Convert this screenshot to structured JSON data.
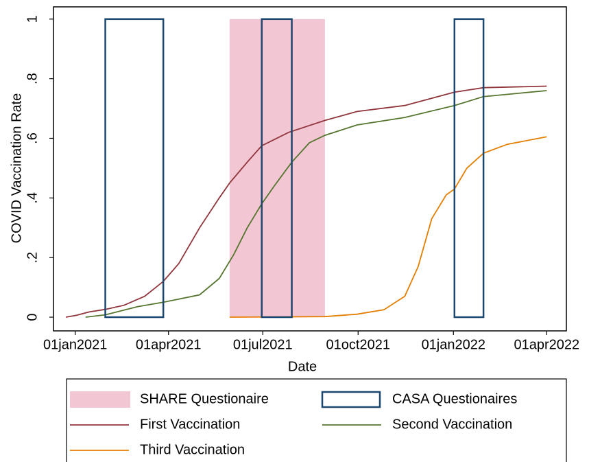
{
  "chart_data": {
    "type": "line",
    "xlabel": "Date",
    "ylabel": "COVID Vaccination Rate",
    "xlim": [
      "2020-12-11",
      "2022-04-20"
    ],
    "xticks": [
      {
        "value": "2021-01-01",
        "label": "01jan2021"
      },
      {
        "value": "2021-04-01",
        "label": "01apr2021"
      },
      {
        "value": "2021-07-01",
        "label": "01jul2021"
      },
      {
        "value": "2021-10-01",
        "label": "01oct2021"
      },
      {
        "value": "2022-01-01",
        "label": "01jan2022"
      },
      {
        "value": "2022-04-01",
        "label": "01apr2022"
      }
    ],
    "ylim": [
      -0.046,
      1.041
    ],
    "yticks": [
      0,
      {
        "value": 0.2,
        "label": ".2"
      },
      {
        "value": 0.4,
        "label": ".4"
      },
      {
        "value": 0.6,
        "label": ".6"
      },
      {
        "value": 0.8,
        "label": ".8"
      },
      1
    ],
    "bands": [
      {
        "name": "SHARE Questionaire",
        "style": "fill",
        "color": "#f2c6d2",
        "range": [
          0,
          1
        ],
        "spans": [
          [
            "2021-05-30",
            "2021-08-30"
          ]
        ]
      },
      {
        "name": "CASA Questionaires",
        "style": "outline",
        "color": "#1a476f",
        "range": [
          0,
          1
        ],
        "spans": [
          [
            "2021-01-30",
            "2021-03-27"
          ],
          [
            "2021-06-30",
            "2021-07-29"
          ],
          [
            "2022-01-02",
            "2022-01-30"
          ]
        ]
      }
    ],
    "series": [
      {
        "name": "First Vaccination",
        "color": "#90353b",
        "x": [
          "2020-12-23",
          "2021-01-02",
          "2021-01-15",
          "2021-01-30",
          "2021-02-17",
          "2021-03-09",
          "2021-03-27",
          "2021-04-11",
          "2021-05-01",
          "2021-05-20",
          "2021-05-30",
          "2021-06-16",
          "2021-06-30",
          "2021-07-26",
          "2021-08-30",
          "2021-09-30",
          "2021-11-15",
          "2022-01-02",
          "2022-01-30",
          "2022-04-01"
        ],
        "values": [
          0,
          0.006,
          0.018,
          0.026,
          0.04,
          0.07,
          0.12,
          0.18,
          0.3,
          0.4,
          0.45,
          0.52,
          0.575,
          0.62,
          0.66,
          0.69,
          0.71,
          0.755,
          0.77,
          0.775
        ]
      },
      {
        "name": "Second Vaccination",
        "color": "#55752f",
        "x": [
          "2021-01-11",
          "2021-01-30",
          "2021-03-02",
          "2021-03-27",
          "2021-05-01",
          "2021-05-20",
          "2021-06-03",
          "2021-06-16",
          "2021-06-30",
          "2021-07-12",
          "2021-07-29",
          "2021-08-15",
          "2021-08-30",
          "2021-09-30",
          "2021-11-15",
          "2022-01-02",
          "2022-01-30",
          "2022-04-01"
        ],
        "values": [
          0,
          0.008,
          0.035,
          0.05,
          0.075,
          0.13,
          0.21,
          0.3,
          0.38,
          0.44,
          0.52,
          0.585,
          0.61,
          0.645,
          0.67,
          0.71,
          0.74,
          0.76
        ]
      },
      {
        "name": "Third Vaccination",
        "color": "#e37e00",
        "x": [
          "2021-05-30",
          "2021-08-30",
          "2021-09-30",
          "2021-10-26",
          "2021-11-15",
          "2021-11-28",
          "2021-12-11",
          "2021-12-25",
          "2022-01-02",
          "2022-01-14",
          "2022-01-30",
          "2022-02-22",
          "2022-04-01"
        ],
        "values": [
          0,
          0.002,
          0.01,
          0.025,
          0.07,
          0.17,
          0.33,
          0.41,
          0.43,
          0.5,
          0.55,
          0.58,
          0.605
        ]
      }
    ]
  }
}
